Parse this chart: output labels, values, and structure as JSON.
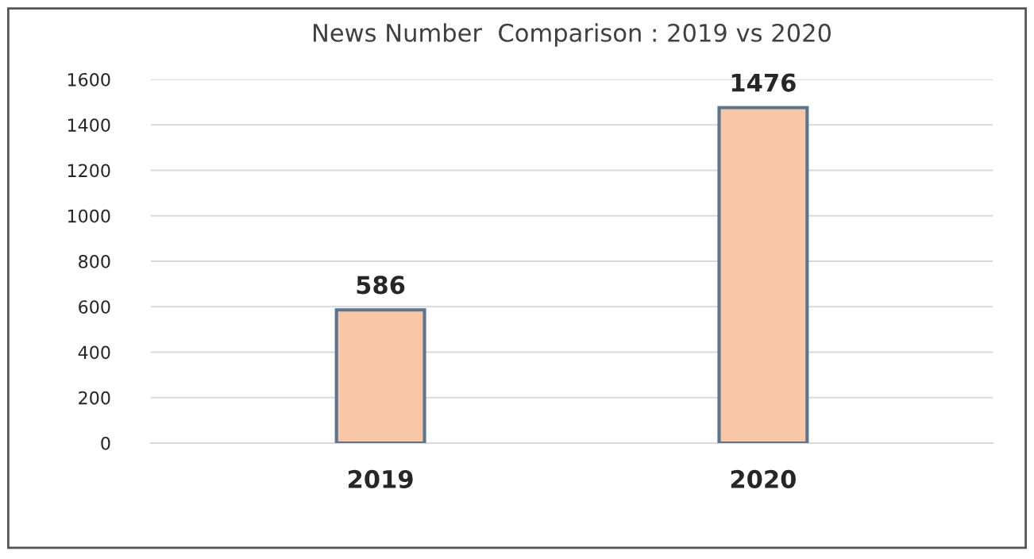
{
  "chart_data": {
    "type": "bar",
    "title": "News Number  Comparison : 2019 vs 2020",
    "categories": [
      "2019",
      "2020"
    ],
    "values": [
      586,
      1476
    ],
    "color": "#f9c7a6",
    "ylim": [
      0,
      1600
    ],
    "yticks": [
      0,
      200,
      400,
      600,
      800,
      1000,
      1200,
      1400,
      1600
    ],
    "grid": "y",
    "data_labels": true
  }
}
